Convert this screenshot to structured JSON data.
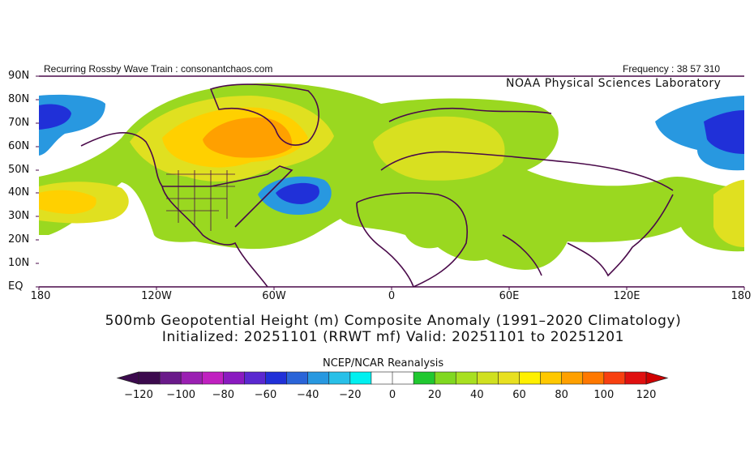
{
  "header": {
    "left_text": "Recurring Rossby Wave Train : consonantchaos.com",
    "right_text": "Frequency : 38 57 310",
    "lab_name": "NOAA Physical Sciences Laboratory"
  },
  "titles": {
    "line1": "500mb Geopotential Height (m) Composite Anomaly (1991–2020 Climatology)",
    "line2": "Initialized: 20251101 (RRWT mf) Valid: 20251101 to 20251201"
  },
  "map": {
    "lat_labels": [
      "90N",
      "80N",
      "70N",
      "60N",
      "50N",
      "40N",
      "30N",
      "20N",
      "10N",
      "EQ"
    ],
    "lon_labels": [
      "180",
      "120W",
      "60W",
      "0",
      "60E",
      "120E",
      "180"
    ]
  },
  "colorbar": {
    "title": "NCEP/NCAR Reanalysis",
    "tick_labels": [
      "−120",
      "−100",
      "−80",
      "−60",
      "−40",
      "−20",
      "0",
      "20",
      "40",
      "60",
      "80",
      "100",
      "120"
    ],
    "colors": [
      "#3c0a4e",
      "#6a1a8a",
      "#9a20b2",
      "#c020c0",
      "#8a1ac0",
      "#5a28d0",
      "#2030d8",
      "#2a64d8",
      "#2898e0",
      "#28c0e8",
      "#00f0f0",
      "#ffffff",
      "#ffffff",
      "#20c830",
      "#80d820",
      "#a8e020",
      "#d0e020",
      "#e8e020",
      "#fff000",
      "#ffc800",
      "#ffa000",
      "#ff7800",
      "#f84010",
      "#e01010"
    ],
    "low_arrow_color": "#3c0a4e",
    "high_arrow_color": "#d00000"
  }
}
